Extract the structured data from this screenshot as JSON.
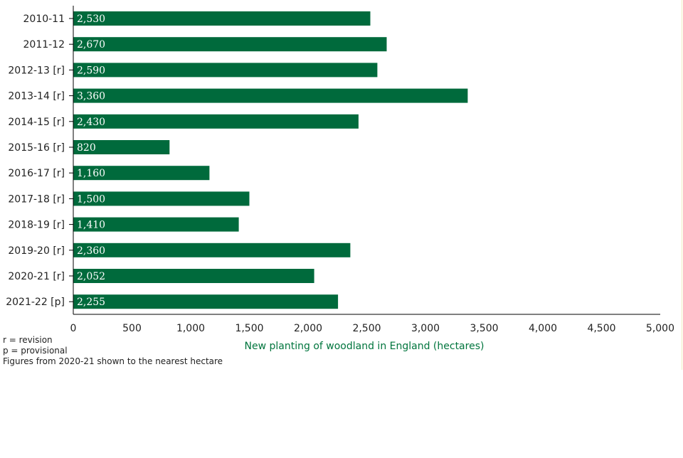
{
  "colors": {
    "bar": "#006a3c",
    "bar_label": "#ffffff",
    "axis_title": "#00753d",
    "axis_line": "#000000",
    "text": "#222222"
  },
  "chart_data": {
    "type": "bar",
    "orientation": "horizontal",
    "categories": [
      "2010-11",
      "2011-12",
      "2012-13 [r]",
      "2013-14 [r]",
      "2014-15 [r]",
      "2015-16 [r]",
      "2016-17 [r]",
      "2017-18 [r]",
      "2018-19 [r]",
      "2019-20 [r]",
      "2020-21 [r]",
      "2021-22 [p]"
    ],
    "values": [
      2530,
      2670,
      2590,
      3360,
      2430,
      820,
      1160,
      1500,
      1410,
      2360,
      2052,
      2255
    ],
    "data_labels": [
      "2,530",
      "2,670",
      "2,590",
      "3,360",
      "2,430",
      "820",
      "1,160",
      "1,500",
      "1,410",
      "2,360",
      "2,052",
      "2,255"
    ],
    "xlabel": "New planting of woodland in England (hectares)",
    "xlim": [
      0,
      5000
    ],
    "xticks": [
      0,
      500,
      1000,
      1500,
      2000,
      2500,
      3000,
      3500,
      4000,
      4500,
      5000
    ],
    "xtick_labels": [
      "0",
      "500",
      "1,000",
      "1,500",
      "2,000",
      "2,500",
      "3,000",
      "3,500",
      "4,000",
      "4,500",
      "5,000"
    ],
    "grid": false,
    "legend": false
  },
  "notes": [
    "r = revision",
    "p = provisional",
    "Figures from 2020-21 shown to the nearest hectare"
  ]
}
